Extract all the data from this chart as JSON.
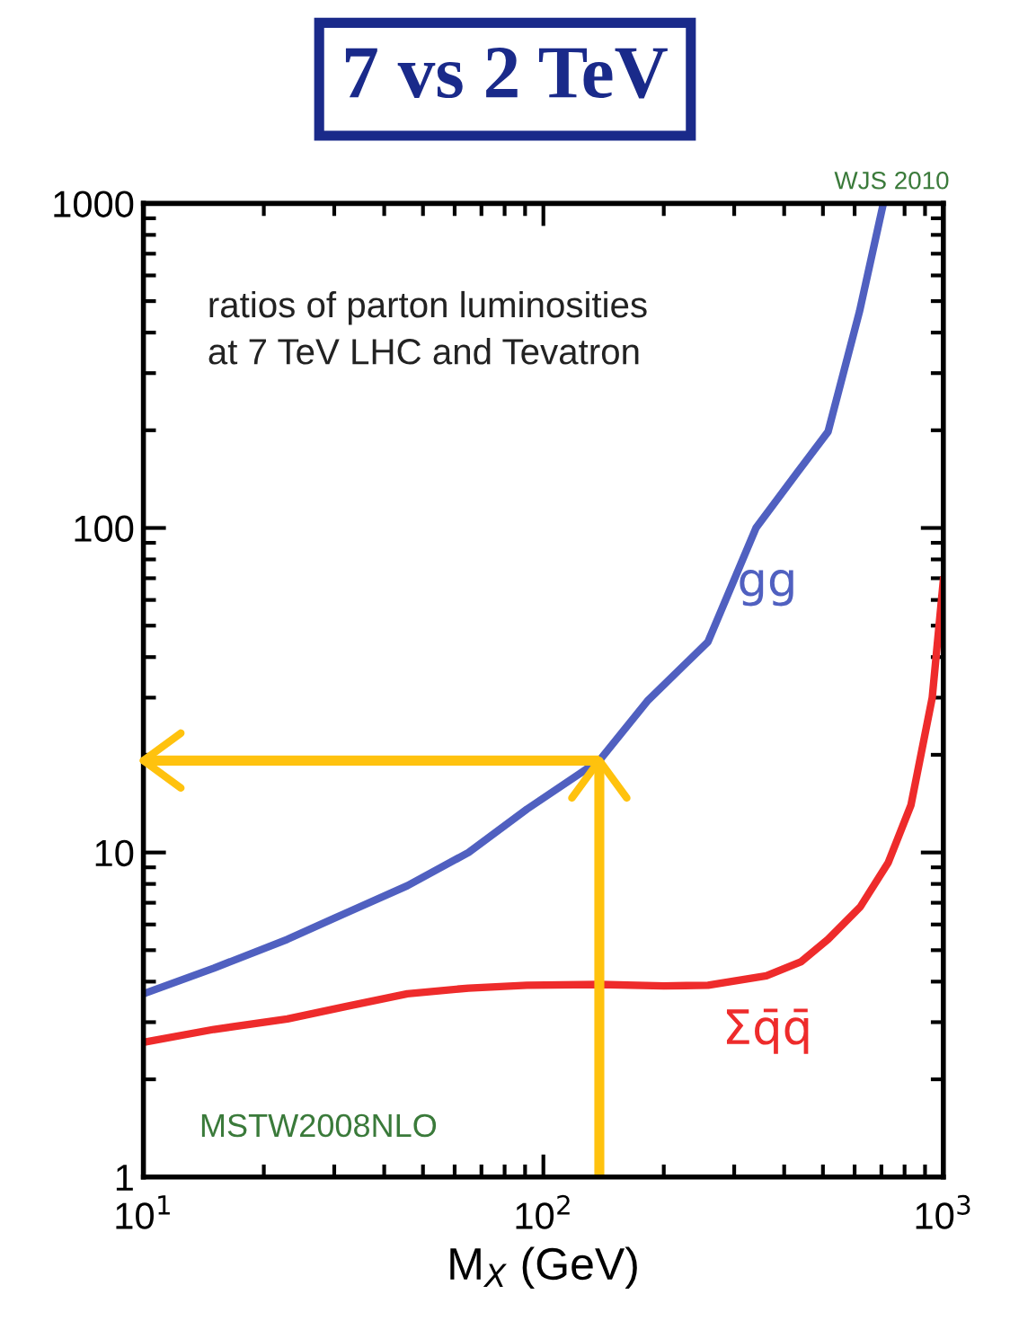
{
  "chart_data": {
    "type": "line",
    "title": "7 vs 2 TeV",
    "xlabel": "M$_{X}$ (GeV)",
    "x": [
      10,
      15,
      22.9,
      32,
      45.7,
      65,
      91,
      138,
      182,
      258,
      340,
      431,
      515,
      617,
      708
    ],
    "series": [
      {
        "name": "gg",
        "color": "#5060c0",
        "values": [
          3.67,
          4.4,
          5.4,
          6.5,
          7.9,
          10.0,
          13.6,
          19.2,
          29.3,
          44.6,
          100,
          148,
          198,
          464,
          1000
        ]
      },
      {
        "name": "Σq̄q̄",
        "color": "#ee2b2b",
        "x": [
          10,
          15,
          22.9,
          32,
          45.7,
          65,
          91,
          138,
          200,
          258,
          361,
          440,
          515,
          620,
          728,
          830,
          938,
          1000
        ],
        "values": [
          2.6,
          2.85,
          3.07,
          3.35,
          3.67,
          3.82,
          3.9,
          3.92,
          3.88,
          3.9,
          4.17,
          4.6,
          5.4,
          6.8,
          9.3,
          14,
          30,
          69
        ]
      }
    ],
    "log": "xy",
    "xlim": [
      10,
      1000
    ],
    "ylim": [
      1,
      1000
    ],
    "xticks": [
      {
        "value": 10,
        "label": "10$^{1}$"
      },
      {
        "value": 100,
        "label": "10$^{2}$"
      },
      {
        "value": 1000,
        "label": "10$^{3}$"
      }
    ],
    "yticks": [
      1,
      10,
      100,
      1000
    ],
    "ref_lines": [
      {
        "axis": "x",
        "value": 138,
        "color": "#ffc20e"
      },
      {
        "axis": "y",
        "value": 19.2,
        "color": "#ffc20e"
      }
    ],
    "annotations": [
      "WJS 2010",
      "ratios of parton luminosities\nat 7 TeV LHC and Tevatron",
      "MSTW2008NLO"
    ],
    "grid": false,
    "legend": false,
    "line_style": "solid",
    "marker": "none"
  }
}
